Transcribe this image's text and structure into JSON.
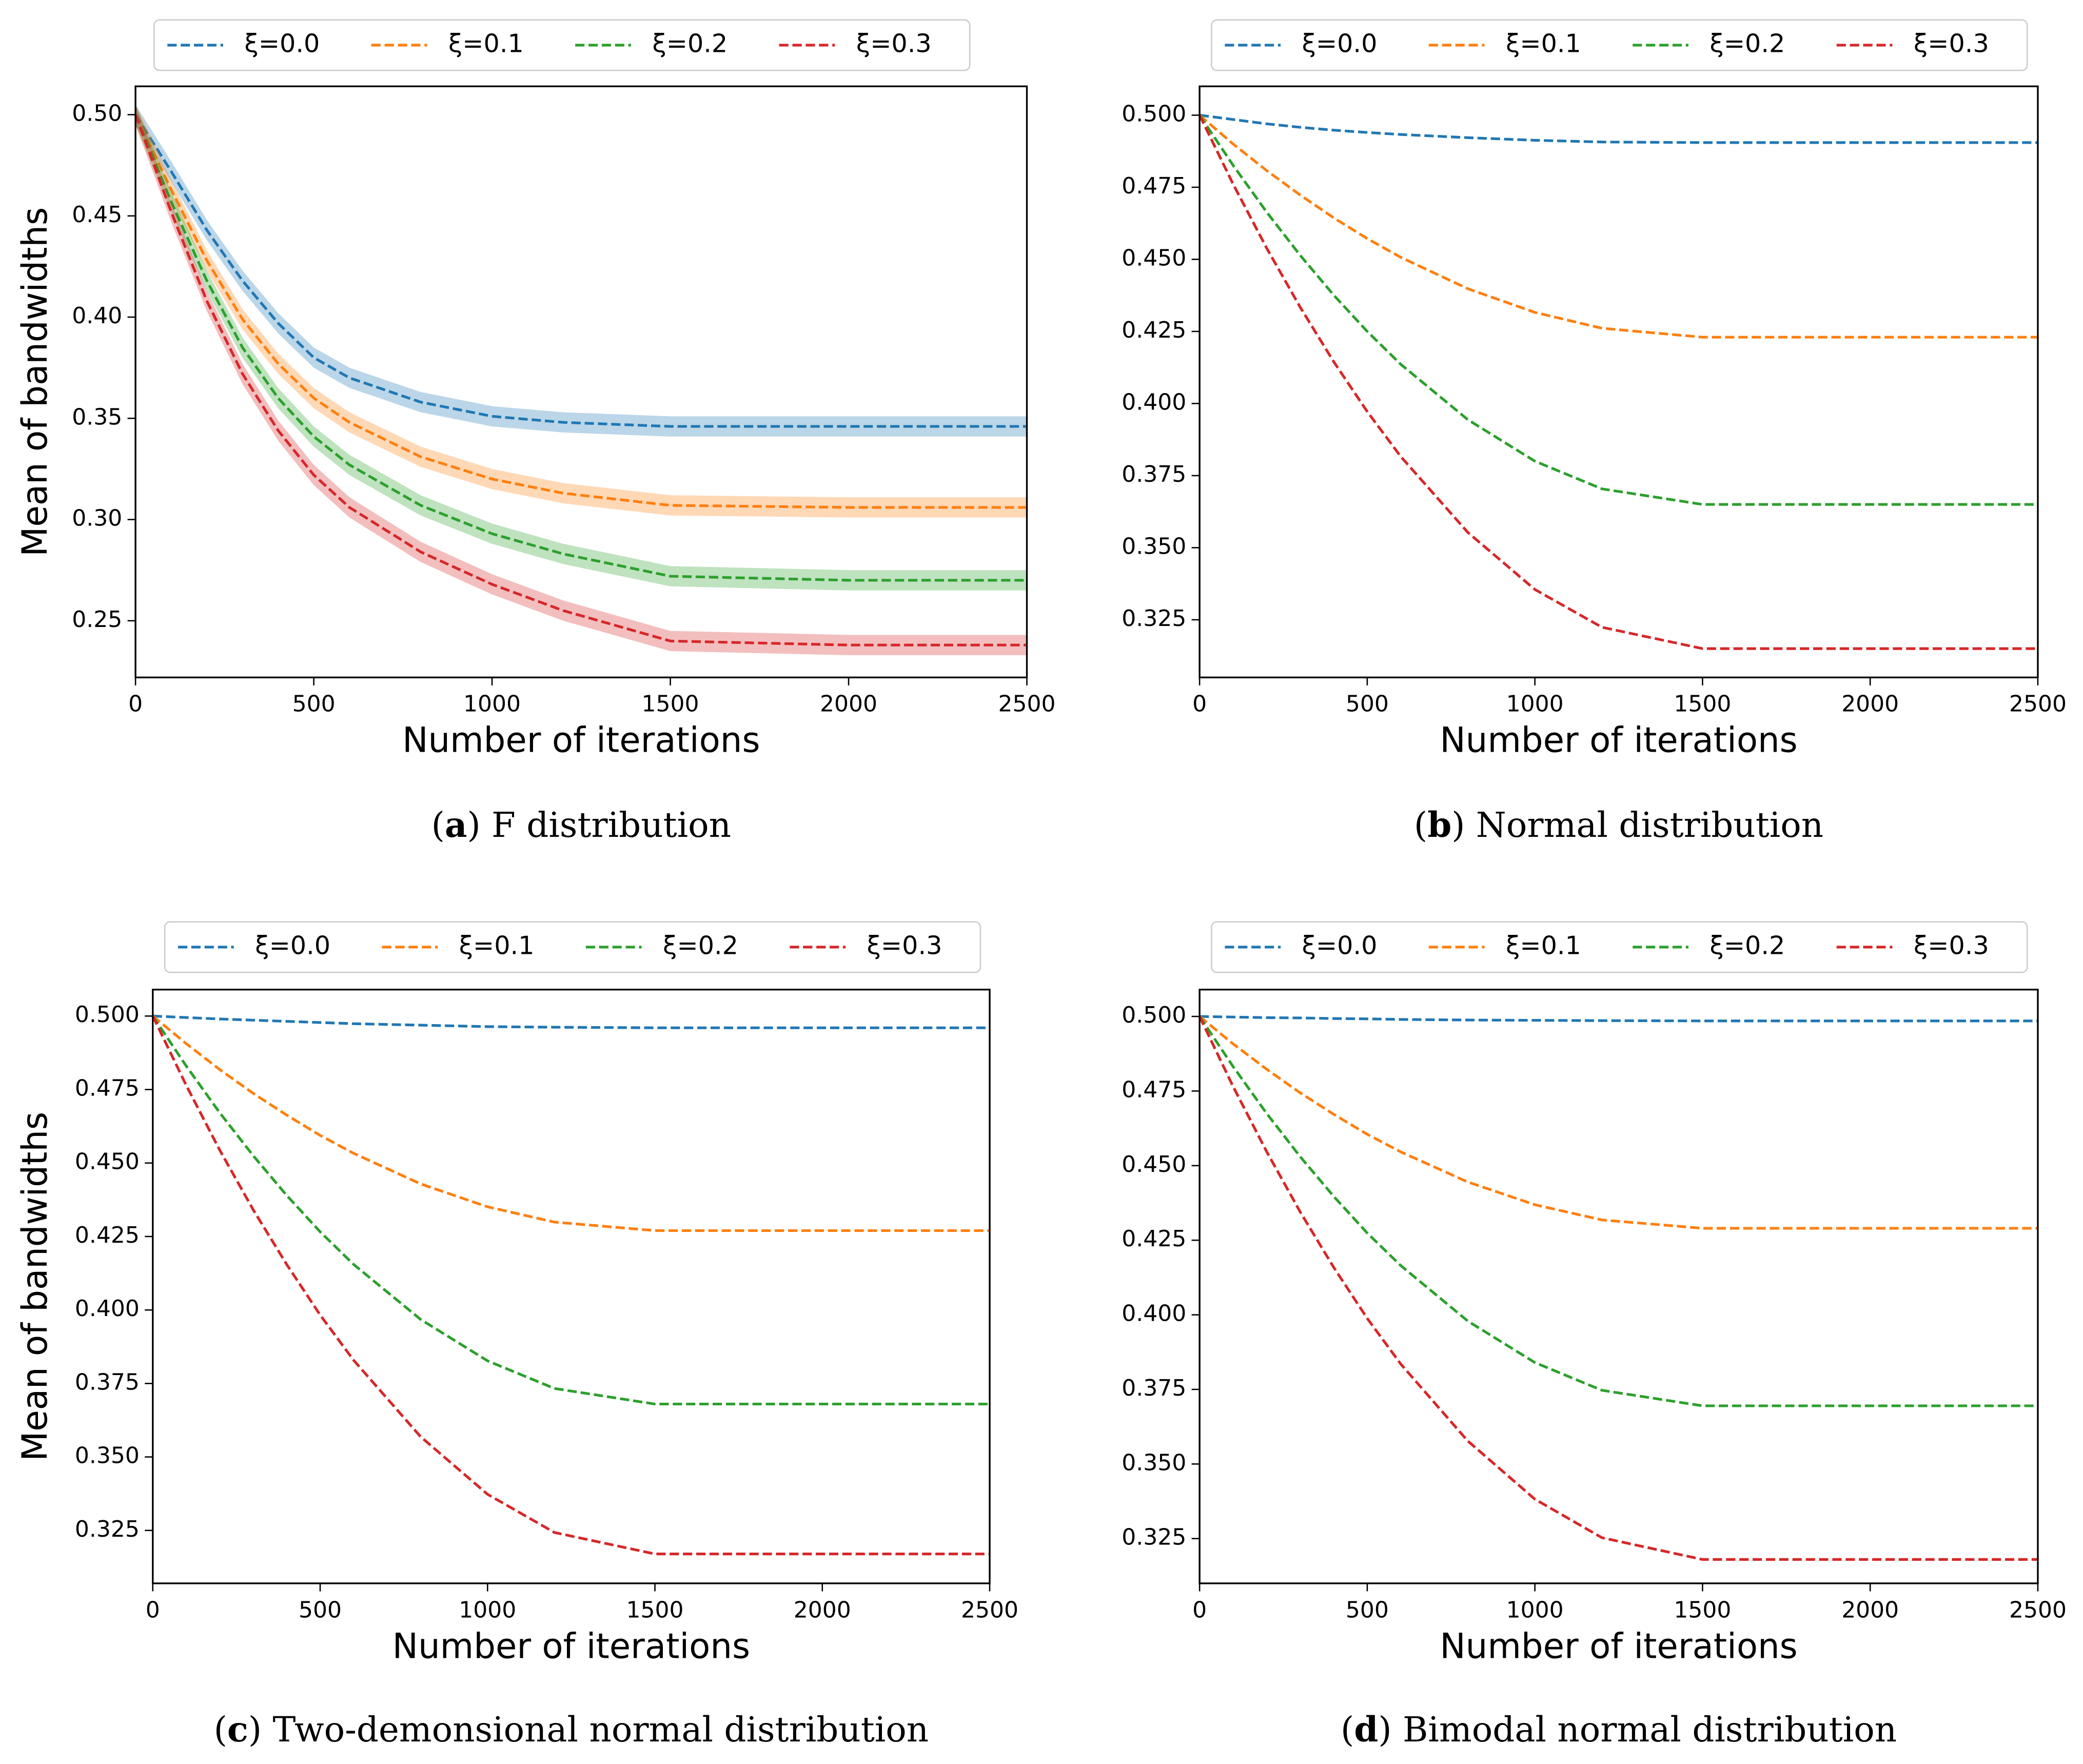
{
  "chart_data": [
    {
      "type": "line",
      "caption_label": "a",
      "caption": "F distribution",
      "xlabel": "Number of iterations",
      "ylabel": "Mean of bandwidths",
      "xlim": [
        0,
        2500
      ],
      "ylim": [
        0.222,
        0.514
      ],
      "xticks": [
        0,
        500,
        1000,
        1500,
        2000,
        2500
      ],
      "yticks": [
        0.25,
        {
          "value": 0.3,
          "label": "0.30"
        },
        0.35,
        {
          "value": 0.4,
          "label": "0.40"
        },
        0.45,
        {
          "value": 0.5,
          "label": "0.50"
        }
      ],
      "grid": false,
      "legend": "top",
      "x": [
        0,
        100,
        200,
        300,
        400,
        500,
        600,
        800,
        1000,
        1200,
        1500,
        2000,
        2500
      ],
      "series": [
        {
          "name": "ξ=0.0",
          "color": "#1f77b4",
          "spread": 0.005,
          "values": [
            0.5,
            0.472,
            0.443,
            0.418,
            0.397,
            0.38,
            0.37,
            0.358,
            0.351,
            0.348,
            0.346,
            0.346,
            0.346
          ]
        },
        {
          "name": "ξ=0.1",
          "color": "#ff7f0e",
          "spread": 0.005,
          "values": [
            0.5,
            0.463,
            0.428,
            0.399,
            0.377,
            0.36,
            0.348,
            0.331,
            0.32,
            0.313,
            0.307,
            0.306,
            0.306
          ]
        },
        {
          "name": "ξ=0.2",
          "color": "#2ca02c",
          "spread": 0.005,
          "values": [
            0.5,
            0.457,
            0.418,
            0.385,
            0.36,
            0.341,
            0.327,
            0.307,
            0.293,
            0.283,
            0.272,
            0.27,
            0.27
          ]
        },
        {
          "name": "ξ=0.3",
          "color": "#d62728",
          "spread": 0.005,
          "values": [
            0.5,
            0.452,
            0.408,
            0.372,
            0.344,
            0.322,
            0.306,
            0.284,
            0.268,
            0.255,
            0.24,
            0.238,
            0.238
          ]
        }
      ]
    },
    {
      "type": "line",
      "caption_label": "b",
      "caption": "Normal distribution",
      "xlabel": "Number of iterations",
      "ylabel": "Mean of bandwidths",
      "xlim": [
        0,
        2500
      ],
      "ylim": [
        0.305,
        0.51
      ],
      "xticks": [
        0,
        500,
        1000,
        1500,
        2000,
        2500
      ],
      "yticks": [
        0.325,
        {
          "value": 0.35,
          "label": "0.350"
        },
        0.375,
        {
          "value": 0.4,
          "label": "0.400"
        },
        0.425,
        {
          "value": 0.45,
          "label": "0.450"
        },
        0.475,
        {
          "value": 0.5,
          "label": "0.500"
        }
      ],
      "grid": false,
      "legend": "top",
      "x": [
        0,
        100,
        200,
        300,
        400,
        500,
        600,
        800,
        1000,
        1200,
        1500,
        2000,
        2500
      ],
      "series": [
        {
          "name": "ξ=0.0",
          "color": "#1f77b4",
          "values": [
            0.5,
            0.4985,
            0.497,
            0.4958,
            0.4948,
            0.494,
            0.4933,
            0.4922,
            0.4913,
            0.4907,
            0.4905,
            0.4905,
            0.4905
          ]
        },
        {
          "name": "ξ=0.1",
          "color": "#ff7f0e",
          "values": [
            0.5,
            0.49,
            0.4808,
            0.4723,
            0.4644,
            0.4572,
            0.4507,
            0.4398,
            0.4316,
            0.4261,
            0.423,
            0.423,
            0.423
          ]
        },
        {
          "name": "ξ=0.2",
          "color": "#2ca02c",
          "values": [
            0.5,
            0.4826,
            0.4664,
            0.4514,
            0.4376,
            0.425,
            0.4136,
            0.3944,
            0.38,
            0.3704,
            0.365,
            0.365,
            0.365
          ]
        },
        {
          "name": "ξ=0.3",
          "color": "#d62728",
          "values": [
            0.5,
            0.4761,
            0.4539,
            0.4334,
            0.4145,
            0.3972,
            0.3816,
            0.3553,
            0.3355,
            0.3224,
            0.315,
            0.315,
            0.315
          ]
        }
      ]
    },
    {
      "type": "line",
      "caption_label": "c",
      "caption": "Two-demonsional normal distribution",
      "xlabel": "Number of iterations",
      "ylabel": "Mean of bandwidths",
      "xlim": [
        0,
        2500
      ],
      "ylim": [
        0.307,
        0.509
      ],
      "xticks": [
        0,
        500,
        1000,
        1500,
        2000,
        2500
      ],
      "yticks": [
        0.325,
        {
          "value": 0.35,
          "label": "0.350"
        },
        0.375,
        {
          "value": 0.4,
          "label": "0.400"
        },
        0.425,
        {
          "value": 0.45,
          "label": "0.450"
        },
        0.475,
        {
          "value": 0.5,
          "label": "0.500"
        }
      ],
      "grid": false,
      "legend": "top",
      "x": [
        0,
        100,
        200,
        300,
        400,
        500,
        600,
        800,
        1000,
        1200,
        1500,
        2000,
        2500
      ],
      "series": [
        {
          "name": "ξ=0.0",
          "color": "#1f77b4",
          "values": [
            0.5,
            0.4995,
            0.499,
            0.4986,
            0.4982,
            0.4978,
            0.4974,
            0.4969,
            0.4964,
            0.4962,
            0.496,
            0.496,
            0.496
          ]
        },
        {
          "name": "ξ=0.1",
          "color": "#ff7f0e",
          "values": [
            0.5,
            0.4906,
            0.4818,
            0.4737,
            0.4663,
            0.4594,
            0.4533,
            0.4429,
            0.4351,
            0.4299,
            0.427,
            0.427,
            0.427
          ]
        },
        {
          "name": "ξ=0.2",
          "color": "#2ca02c",
          "values": [
            0.5,
            0.483,
            0.4671,
            0.4525,
            0.439,
            0.4266,
            0.4155,
            0.3968,
            0.3827,
            0.3733,
            0.368,
            0.368,
            0.368
          ]
        },
        {
          "name": "ξ=0.3",
          "color": "#d62728",
          "values": [
            0.5,
            0.4764,
            0.4544,
            0.4341,
            0.4155,
            0.3983,
            0.3829,
            0.3569,
            0.3373,
            0.3243,
            0.317,
            0.317,
            0.317
          ]
        }
      ]
    },
    {
      "type": "line",
      "caption_label": "d",
      "caption": "Bimodal normal distribution",
      "xlabel": "Number of iterations",
      "ylabel": "Mean of bandwidths",
      "xlim": [
        0,
        2500
      ],
      "ylim": [
        0.31,
        0.509
      ],
      "xticks": [
        0,
        500,
        1000,
        1500,
        2000,
        2500
      ],
      "yticks": [
        0.325,
        {
          "value": 0.35,
          "label": "0.350"
        },
        0.375,
        {
          "value": 0.4,
          "label": "0.400"
        },
        0.425,
        {
          "value": 0.45,
          "label": "0.450"
        },
        0.475,
        {
          "value": 0.5,
          "label": "0.500"
        }
      ],
      "grid": false,
      "legend": "top",
      "x": [
        0,
        100,
        200,
        300,
        400,
        500,
        600,
        800,
        1000,
        1200,
        1500,
        2000,
        2500
      ],
      "series": [
        {
          "name": "ξ=0.0",
          "color": "#1f77b4",
          "values": [
            0.5,
            0.4998,
            0.4996,
            0.4995,
            0.4993,
            0.4992,
            0.499,
            0.4988,
            0.4987,
            0.4986,
            0.4985,
            0.4985,
            0.4985
          ]
        },
        {
          "name": "ξ=0.1",
          "color": "#ff7f0e",
          "values": [
            0.5,
            0.4908,
            0.4823,
            0.4744,
            0.4672,
            0.4605,
            0.4546,
            0.4445,
            0.4369,
            0.4318,
            0.429,
            0.429,
            0.429
          ]
        },
        {
          "name": "ξ=0.2",
          "color": "#2ca02c",
          "values": [
            0.5,
            0.4832,
            0.4675,
            0.453,
            0.4397,
            0.4274,
            0.4165,
            0.3979,
            0.384,
            0.3747,
            0.3695,
            0.3695,
            0.3695
          ]
        },
        {
          "name": "ξ=0.3",
          "color": "#d62728",
          "values": [
            0.5,
            0.4765,
            0.4547,
            0.4345,
            0.4159,
            0.3988,
            0.3835,
            0.3577,
            0.3382,
            0.3253,
            0.318,
            0.318,
            0.318
          ]
        }
      ]
    }
  ]
}
